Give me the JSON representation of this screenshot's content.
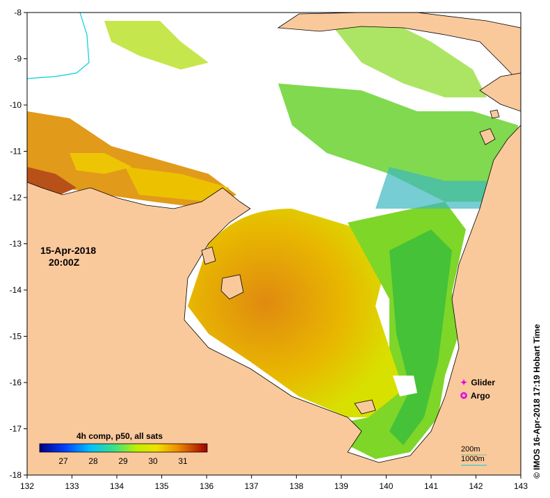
{
  "map": {
    "x_ticks": [
      "132",
      "133",
      "134",
      "135",
      "136",
      "137",
      "138",
      "139",
      "140",
      "141",
      "142",
      "143"
    ],
    "y_ticks": [
      "-8",
      "-9",
      "-10",
      "-11",
      "-12",
      "-13",
      "-14",
      "-15",
      "-16",
      "-17",
      "-18"
    ],
    "x_range": [
      132,
      143
    ],
    "y_range": [
      -18,
      -8
    ],
    "date": "15-Apr-2018",
    "time": "20:00Z",
    "colorbar": {
      "title": "4h comp, p50, all sats",
      "ticks": [
        "27",
        "28",
        "29",
        "30",
        "31"
      ],
      "range": [
        26.2,
        31.8
      ]
    },
    "legend": {
      "glider": "Glider",
      "argo": "Argo"
    },
    "isobaths": {
      "shallow": "200m",
      "deep": "1000m"
    },
    "copyright": "© IMOS 16-Apr-2018 17:19 Hobart Time",
    "colors": {
      "land": "#f9c99c",
      "no_data": "#ffffff",
      "warm": "#d2691e",
      "mid": "#e6c800",
      "cool": "#39c23a",
      "isobath_1000": "#00d0e0",
      "platform_marker": "#e000e0"
    }
  }
}
